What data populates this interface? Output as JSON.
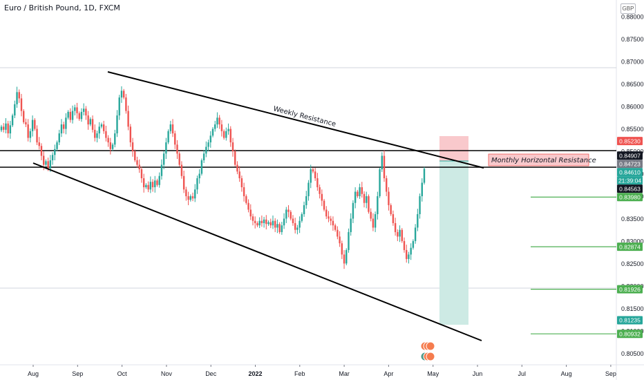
{
  "header": {
    "title": "Euro / British Pound, 1D, FXCM"
  },
  "currency_button": "GBP",
  "chart_data": {
    "type": "candlestick",
    "title": "Euro / British Pound, 1D, FXCM",
    "x_tick_labels": [
      "Aug",
      "Sep",
      "Oct",
      "Nov",
      "Dec",
      "2022",
      "Feb",
      "Mar",
      "Apr",
      "May",
      "Jun",
      "Jul",
      "Aug",
      "Sep"
    ],
    "y_ticks": [
      0.805,
      0.81,
      0.815,
      0.82,
      0.825,
      0.83,
      0.835,
      0.84,
      0.845,
      0.85,
      0.855,
      0.86,
      0.865,
      0.87,
      0.875,
      0.88
    ],
    "ylim": [
      0.8035,
      0.8825
    ],
    "horizontal_lines": [
      0.84907,
      0.84563
    ],
    "price_badges": [
      {
        "value": "0.85230",
        "color": "#ef5350"
      },
      {
        "value": "0.84907",
        "color": "#131722"
      },
      {
        "value": "0.84723",
        "color": "#787b86"
      },
      {
        "value": "0.84610",
        "color": "#26a69a"
      },
      {
        "value": "21:39:04",
        "color": "#26a69a"
      },
      {
        "value": "0.84563",
        "color": "#131722"
      },
      {
        "value": "0.83980",
        "color": "#4caf50"
      },
      {
        "value": "0.82874",
        "color": "#4caf50"
      },
      {
        "value": "0.81926",
        "color": "#4caf50"
      },
      {
        "value": "0.81235",
        "color": "#26a69a"
      },
      {
        "value": "0.80932",
        "color": "#4caf50"
      }
    ],
    "target_levels": [
      0.8398,
      0.82874,
      0.81926,
      0.80932
    ],
    "annotations": [
      {
        "text": "Weekly Resistance"
      },
      {
        "text": "Monthly Horizontal Resistance"
      }
    ],
    "candles_close": [
      0.8555,
      0.8548,
      0.8562,
      0.854,
      0.8558,
      0.858,
      0.8605,
      0.8632,
      0.8618,
      0.859,
      0.8565,
      0.856,
      0.853,
      0.8545,
      0.857,
      0.855,
      0.852,
      0.8512,
      0.849,
      0.847,
      0.8478,
      0.8462,
      0.848,
      0.8492,
      0.8505,
      0.852,
      0.854,
      0.856,
      0.855,
      0.8575,
      0.8588,
      0.857,
      0.859,
      0.8598,
      0.8585,
      0.8572,
      0.8588,
      0.8595,
      0.858,
      0.856,
      0.8572,
      0.8548,
      0.853,
      0.854,
      0.8555,
      0.856,
      0.8545,
      0.853,
      0.852,
      0.8505,
      0.8515,
      0.854,
      0.858,
      0.862,
      0.8635,
      0.862,
      0.859,
      0.8555,
      0.852,
      0.85,
      0.848,
      0.847,
      0.846,
      0.844,
      0.842,
      0.8425,
      0.8415,
      0.8432,
      0.842,
      0.8435,
      0.8425,
      0.8445,
      0.847,
      0.8495,
      0.852,
      0.8545,
      0.856,
      0.854,
      0.8515,
      0.8495,
      0.847,
      0.8445,
      0.8415,
      0.84,
      0.8392,
      0.84,
      0.8395,
      0.8415,
      0.844,
      0.845,
      0.848,
      0.8495,
      0.851,
      0.852,
      0.8535,
      0.855,
      0.856,
      0.8575,
      0.856,
      0.8545,
      0.853,
      0.8545,
      0.855,
      0.852,
      0.85,
      0.847,
      0.8455,
      0.844,
      0.842,
      0.84,
      0.8385,
      0.837,
      0.8355,
      0.8345,
      0.834,
      0.8335,
      0.8345,
      0.834,
      0.8348,
      0.8338,
      0.8342,
      0.8335,
      0.8345,
      0.833,
      0.8338,
      0.832,
      0.8335,
      0.835,
      0.837,
      0.8365,
      0.835,
      0.834,
      0.8325,
      0.833,
      0.8345,
      0.836,
      0.838,
      0.84,
      0.843,
      0.846,
      0.8455,
      0.844,
      0.842,
      0.8405,
      0.839,
      0.837,
      0.8355,
      0.835,
      0.8345,
      0.8335,
      0.8325,
      0.831,
      0.8295,
      0.827,
      0.825,
      0.828,
      0.832,
      0.835,
      0.8385,
      0.841,
      0.84,
      0.842,
      0.8405,
      0.8385,
      0.84,
      0.8365,
      0.835,
      0.833,
      0.836,
      0.84,
      0.846,
      0.849,
      0.844,
      0.841,
      0.838,
      0.836,
      0.834,
      0.832,
      0.831,
      0.8325,
      0.83,
      0.828,
      0.826,
      0.827,
      0.8285,
      0.83,
      0.833,
      0.836,
      0.84,
      0.843,
      0.8461
    ]
  }
}
